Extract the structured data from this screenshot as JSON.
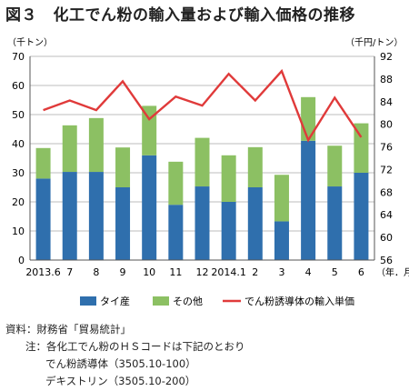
{
  "title": "図３　化工でん粉の輸入量および輸入価格の推移",
  "chart_data": {
    "type": "bar+line",
    "categories": [
      "2013.6",
      "7",
      "8",
      "9",
      "10",
      "11",
      "12",
      "2014.1",
      "2",
      "3",
      "4",
      "5",
      "6"
    ],
    "x_unit": "（年．月）",
    "series": [
      {
        "name": "タイ産",
        "type": "bar",
        "axis": "left",
        "color": "#2f6fad",
        "values": [
          28,
          30.3,
          30.3,
          25,
          36,
          19,
          25.3,
          20,
          25,
          13.3,
          41,
          25.3,
          30
        ]
      },
      {
        "name": "その他",
        "type": "bar",
        "axis": "left",
        "color": "#8cc063",
        "values": [
          10.5,
          16,
          18.5,
          13.7,
          17,
          14.8,
          16.7,
          16,
          13.8,
          16,
          15,
          14,
          17
        ]
      },
      {
        "name": "でん粉誘導体の輸入単価",
        "type": "line",
        "axis": "right",
        "color": "#e03a3a",
        "values": [
          82.5,
          84.2,
          82.5,
          87.6,
          80.9,
          84.9,
          83.3,
          88.9,
          84.2,
          89.4,
          77.2,
          84.7,
          77.7
        ]
      }
    ],
    "stacked": true,
    "y_left": {
      "label": "（千トン）",
      "min": 0,
      "max": 70,
      "step": 10,
      "ticks": [
        "0",
        "10",
        "20",
        "30",
        "40",
        "50",
        "60",
        "70"
      ]
    },
    "y_right": {
      "label": "（千円/トン）",
      "min": 56,
      "max": 92,
      "step": 4,
      "ticks": [
        "56",
        "60",
        "64",
        "68",
        "72",
        "76",
        "80",
        "84",
        "88",
        "92"
      ]
    },
    "grid": true,
    "legend_position": "bottom"
  },
  "notes": {
    "source": "資料：財務省「貿易統計」",
    "note_line1": "注：各化工でん粉のＨＳコードは下記のとおり",
    "note_line2": "でん粉誘導体（3505.10-100）",
    "note_line3": "デキストリン（3505.10-200）"
  }
}
